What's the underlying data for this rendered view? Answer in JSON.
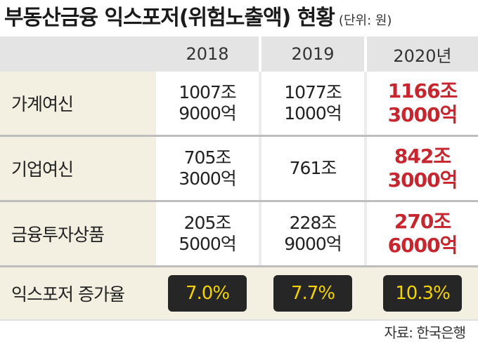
{
  "title": "부동산금융 익스포저(위험노출액) 현황",
  "unit": "(단위: 원)",
  "columns": [
    "2018",
    "2019",
    "2020년"
  ],
  "rows": [
    {
      "label": "가계여신",
      "values": [
        "1007조\n9000억",
        "1077조\n1000억",
        "1166조\n3000억"
      ]
    },
    {
      "label": "기업여신",
      "values": [
        "705조\n3000억",
        "761조",
        "842조\n3000억"
      ]
    },
    {
      "label": "금융투자상품",
      "values": [
        "205조\n5000억",
        "228조\n9000억",
        "270조\n6000억"
      ]
    }
  ],
  "growth": {
    "label": "익스포저 증가율",
    "values": [
      "7.0%",
      "7.7%",
      "10.3%"
    ]
  },
  "source": "자료: 한국은행",
  "colors": {
    "highlight": "#c8262f",
    "badge_bg": "#262626",
    "badge_text": "#f6d200",
    "label_bg": "#f3efe1"
  }
}
